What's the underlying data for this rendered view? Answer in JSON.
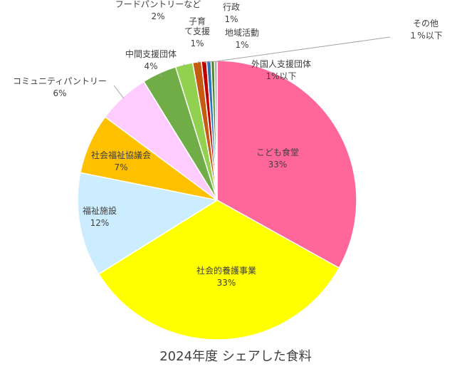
{
  "chart_data": {
    "type": "pie",
    "title": "2024年度 シェアした食料",
    "slices": [
      {
        "name": "こども食堂",
        "value": 33,
        "label": "33%",
        "color": "#FF6699"
      },
      {
        "name": "社会的養護事業",
        "value": 33,
        "label": "33%",
        "color": "#FFFF00"
      },
      {
        "name": "福祉施設",
        "value": 12,
        "label": "12%",
        "color": "#CCECFF"
      },
      {
        "name": "社会福祉協議会",
        "value": 7,
        "label": "7%",
        "color": "#FFC000"
      },
      {
        "name": "コミュニティパントリー",
        "value": 6,
        "label": "6%",
        "color": "#FFCCFF"
      },
      {
        "name": "中間支援団体",
        "value": 4,
        "label": "4%",
        "color": "#70AD47"
      },
      {
        "name": "フードパントリーなど",
        "value": 2,
        "label": "2%",
        "color": "#92D050"
      },
      {
        "name": "子育て支援",
        "value": 1,
        "label": "1%",
        "color": "#C55A11"
      },
      {
        "name": "行政",
        "value": 0.6,
        "label": "1%",
        "color": "#C00000"
      },
      {
        "name": "地域活動",
        "value": 0.5,
        "label": "1%",
        "color": "#2E75B6"
      },
      {
        "name": "外国人支援団体",
        "value": 0.4,
        "label": "1%以下",
        "color": "#548235"
      },
      {
        "name": "その他",
        "value": 0.3,
        "label": "１%以下",
        "color": "#A5A5A5"
      }
    ]
  }
}
